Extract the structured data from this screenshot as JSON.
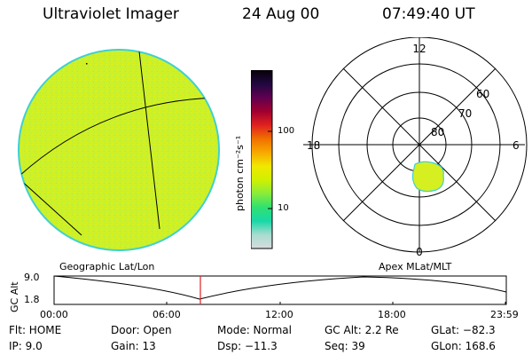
{
  "header": {
    "instrument": "Ultraviolet Imager",
    "date": "24 Aug 00",
    "time": "07:49:40 UT"
  },
  "colorbar": {
    "unit_label": "photon cm⁻²s⁻¹",
    "tick_100": "100",
    "tick_10": "10",
    "stops": [
      "#d8dcdc",
      "#a8dcd0",
      "#18d8a8",
      "#30e070",
      "#88ec3c",
      "#d0f000",
      "#f0e800",
      "#f8a800",
      "#f07000",
      "#e02020",
      "#a00030",
      "#600050",
      "#200840",
      "#080008"
    ]
  },
  "image_panel": {
    "fill_color": "#ccf12a",
    "rim_color": "#40d0d0"
  },
  "polar_plot": {
    "mlt_labels": {
      "top": "12",
      "left": "18",
      "right": "6",
      "bottom": "0"
    },
    "lat_labels": [
      "60",
      "70",
      "80"
    ],
    "oval_color": "#d6ef20"
  },
  "timeline": {
    "y_axis_label": "GC Alt",
    "y_max_label": "9.0",
    "y_min_label": "1.8",
    "left_title": "Geographic Lat/Lon",
    "right_title": "Apex MLat/MLT",
    "x_ticks": [
      "00:00",
      "06:00",
      "12:00",
      "18:00",
      "23:59"
    ],
    "marker_color": "#e02020"
  },
  "info": {
    "row1": [
      "Flt: HOME",
      "Door: Open",
      "Mode: Normal",
      "GC Alt: 2.2 Re",
      "GLat: −82.3"
    ],
    "row2": [
      "IP: 9.0",
      "Gain: 13",
      "Dsp: −11.3",
      "Seq: 39",
      "GLon: 168.6"
    ]
  }
}
